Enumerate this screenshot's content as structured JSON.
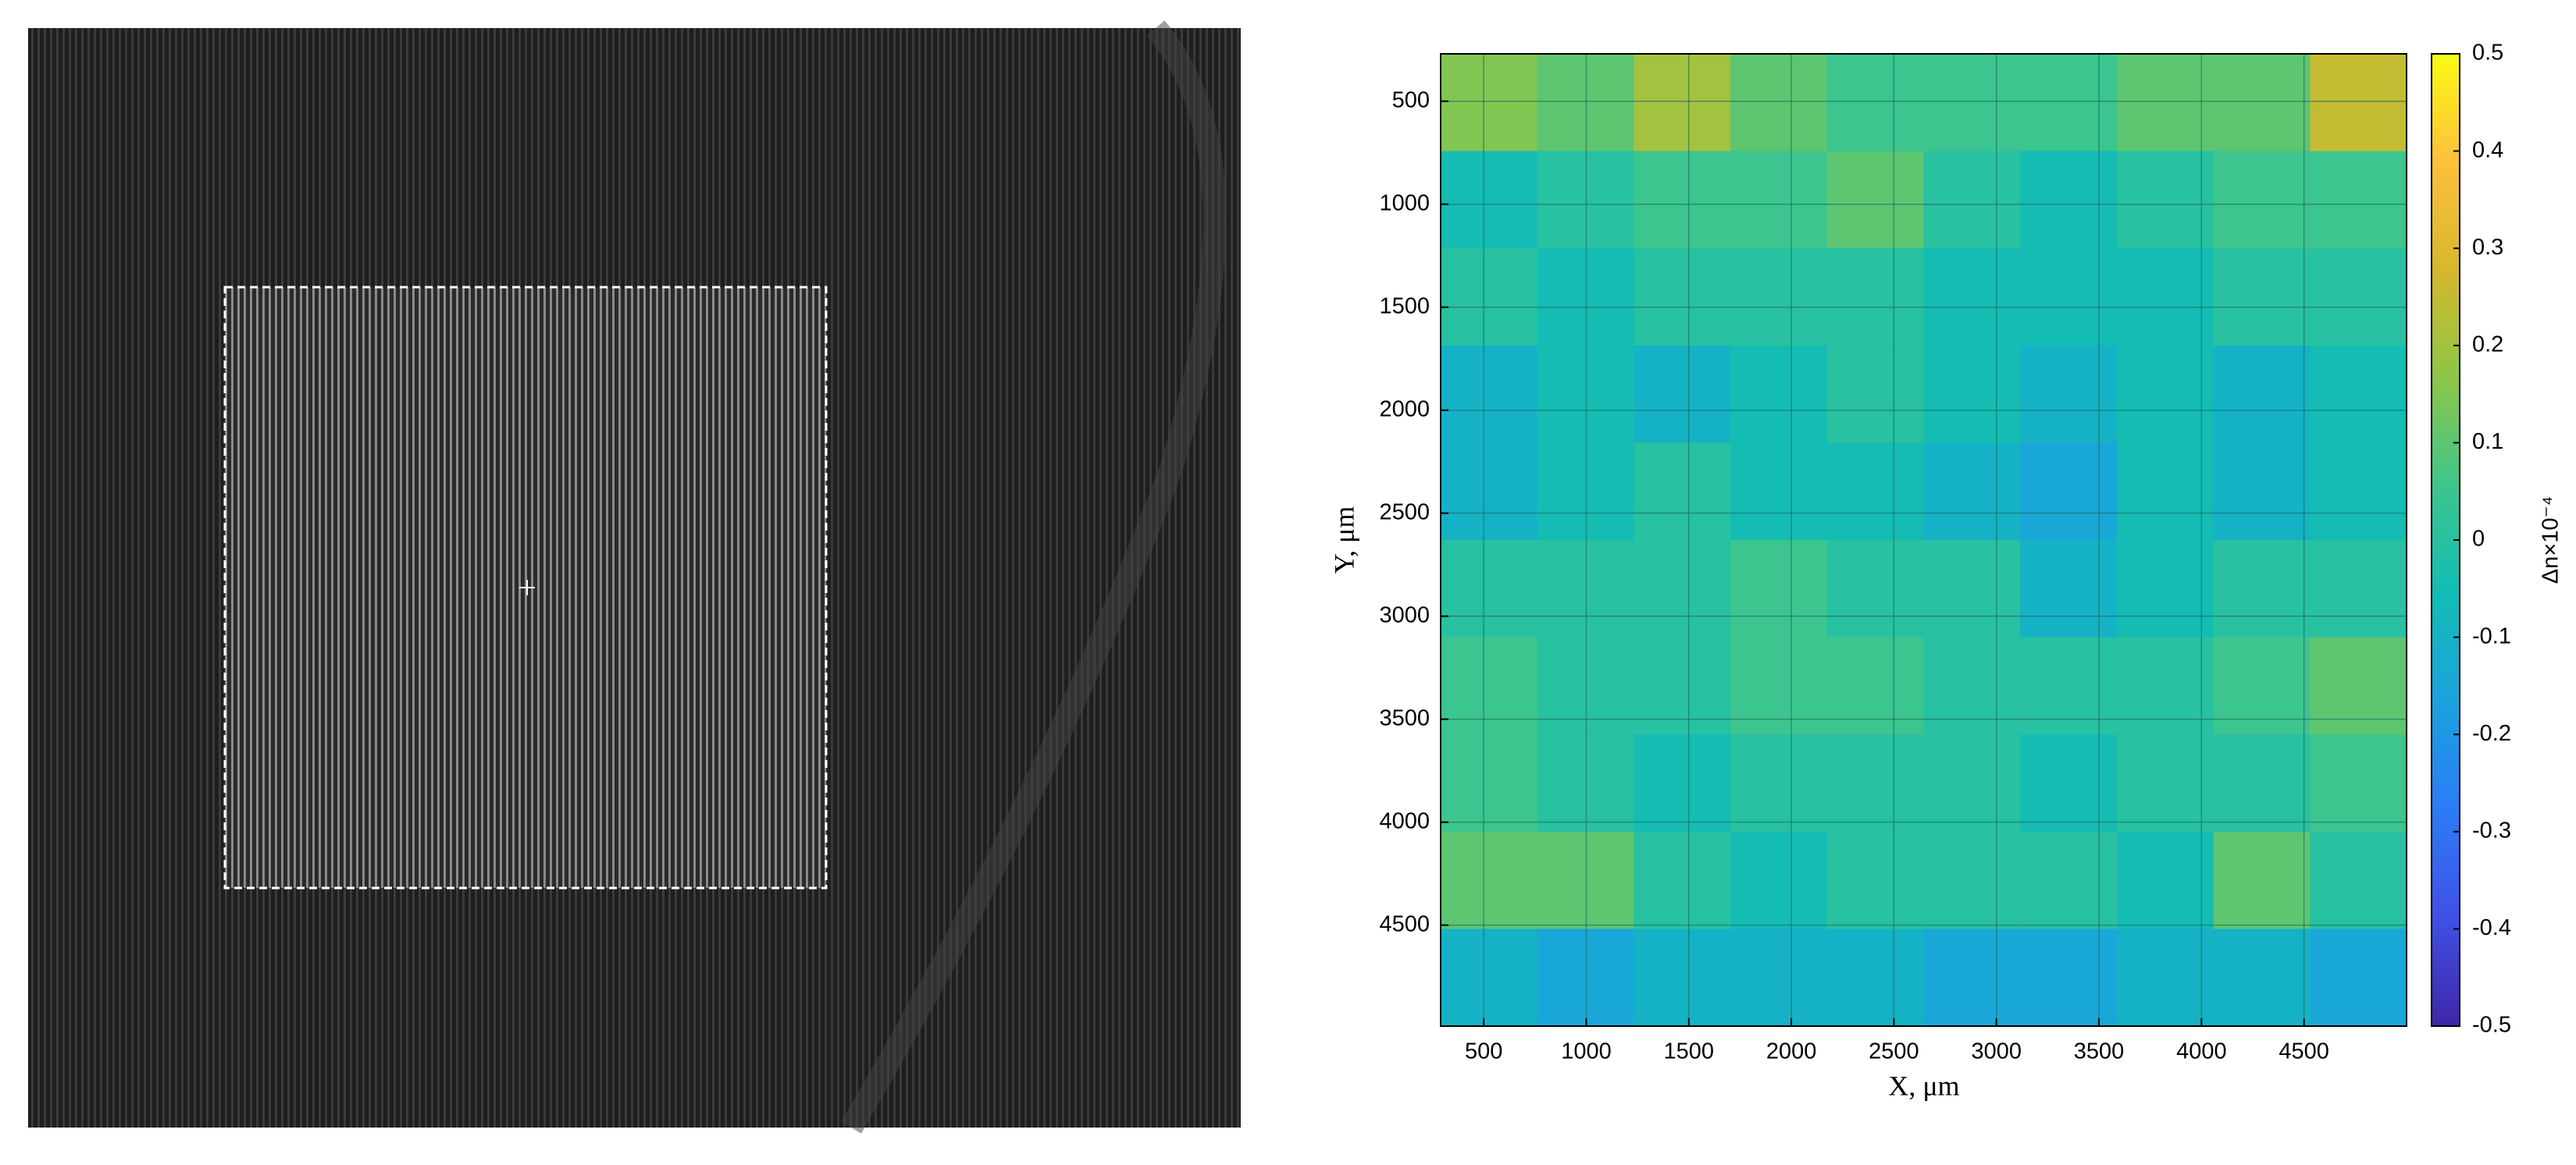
{
  "chart_data": {
    "type": "heatmap",
    "xlabel": "X, μm",
    "ylabel": "Y, μm",
    "colorbar_label": "Δn×10⁻⁴",
    "xlim": [
      290,
      5000
    ],
    "ylim": [
      270,
      4990
    ],
    "y_inverted": true,
    "xticks": [
      500,
      1000,
      1500,
      2000,
      2500,
      3000,
      3500,
      4000,
      4500
    ],
    "yticks": [
      500,
      1000,
      1500,
      2000,
      2500,
      3000,
      3500,
      4000,
      4500
    ],
    "grid": true,
    "clim": [
      -0.5,
      0.5
    ],
    "cticks": [
      -0.5,
      -0.4,
      -0.3,
      -0.2,
      -0.1,
      0,
      0.1,
      0.2,
      0.3,
      0.4,
      0.5
    ],
    "colormap": [
      "#3e26a8",
      "#4150e6",
      "#2b7cf6",
      "#1aa3dd",
      "#12bcb6",
      "#3ec58c",
      "#8dc648",
      "#d6b82c",
      "#fdc03b",
      "#f9fb14"
    ],
    "z": [
      [
        0.15,
        0.1,
        0.2,
        0.1,
        0.05,
        0.05,
        0.05,
        0.1,
        0.1,
        0.25
      ],
      [
        -0.05,
        0,
        0.05,
        0.05,
        0.1,
        0,
        -0.05,
        0,
        0.05,
        0.05
      ],
      [
        0,
        -0.05,
        0,
        0,
        0,
        -0.05,
        -0.05,
        -0.05,
        0,
        0
      ],
      [
        -0.1,
        -0.05,
        -0.1,
        -0.05,
        0,
        -0.05,
        -0.1,
        -0.05,
        -0.1,
        -0.05
      ],
      [
        -0.1,
        -0.05,
        0,
        -0.05,
        -0.05,
        -0.1,
        -0.15,
        -0.05,
        -0.1,
        -0.05
      ],
      [
        0,
        0,
        0,
        0.05,
        0,
        0,
        -0.1,
        -0.05,
        0,
        0
      ],
      [
        0.05,
        0,
        0,
        0.05,
        0.05,
        0,
        0,
        0,
        0.05,
        0.1
      ],
      [
        0.05,
        0,
        -0.05,
        0,
        0,
        0,
        -0.05,
        0,
        0,
        0.05
      ],
      [
        0.1,
        0.1,
        0,
        -0.05,
        0,
        0,
        0,
        -0.05,
        0.1,
        0
      ],
      [
        -0.1,
        -0.15,
        -0.1,
        -0.1,
        -0.1,
        -0.15,
        -0.15,
        -0.1,
        -0.1,
        -0.15
      ]
    ]
  }
}
